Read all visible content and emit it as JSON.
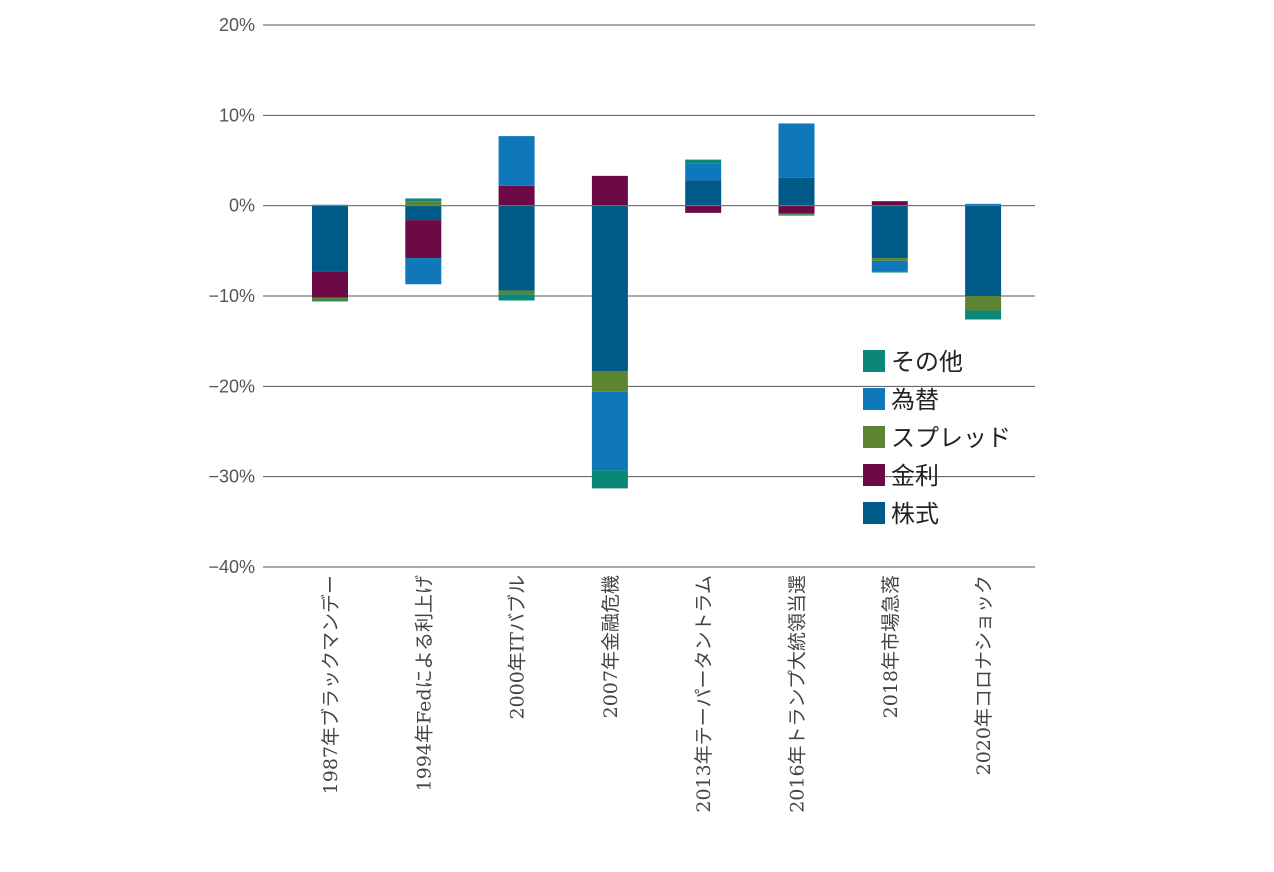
{
  "chart_data": {
    "type": "bar",
    "stacked": true,
    "title": "",
    "xlabel": "",
    "ylabel": "",
    "ylim": [
      -40,
      20
    ],
    "yticks": [
      20,
      10,
      0,
      -10,
      -20,
      -30,
      -40
    ],
    "ytick_labels": [
      "20%",
      "10%",
      "0%",
      "−10%",
      "−20%",
      "−30%",
      "−40%"
    ],
    "grid": true,
    "legend_position": "right",
    "categories": [
      "1987年ブラックマンデー",
      "1994年Fedによる利上げ",
      "2000年ITバブル",
      "2007年金融危機",
      "2013年テーパータントラム",
      "2016年トランプ大統領当選",
      "2018年市場急落",
      "2020年コロナショック"
    ],
    "series": [
      {
        "name": "株式",
        "color": "#005A87",
        "values": [
          -7.3,
          -1.6,
          -9.4,
          -18.3,
          2.8,
          3.1,
          -5.8,
          -10.0
        ]
      },
      {
        "name": "金利",
        "color": "#6B0A44",
        "values": [
          -2.9,
          -4.2,
          2.2,
          3.3,
          -0.8,
          -0.9,
          0.5,
          0.0
        ]
      },
      {
        "name": "スプレッド",
        "color": "#5C8432",
        "values": [
          -0.3,
          0.5,
          -0.4,
          -2.3,
          0.0,
          -0.1,
          -0.3,
          -1.6
        ]
      },
      {
        "name": "為替",
        "color": "#0E78BA",
        "values": [
          0.1,
          -2.9,
          5.5,
          -8.7,
          1.9,
          6.0,
          -1.2,
          0.2
        ]
      },
      {
        "name": "その他",
        "color": "#0A8776",
        "values": [
          -0.1,
          0.3,
          -0.7,
          -2.0,
          0.4,
          -0.1,
          -0.1,
          -1.0
        ]
      }
    ],
    "legend_order": [
      "その他",
      "為替",
      "スプレッド",
      "金利",
      "株式"
    ]
  }
}
